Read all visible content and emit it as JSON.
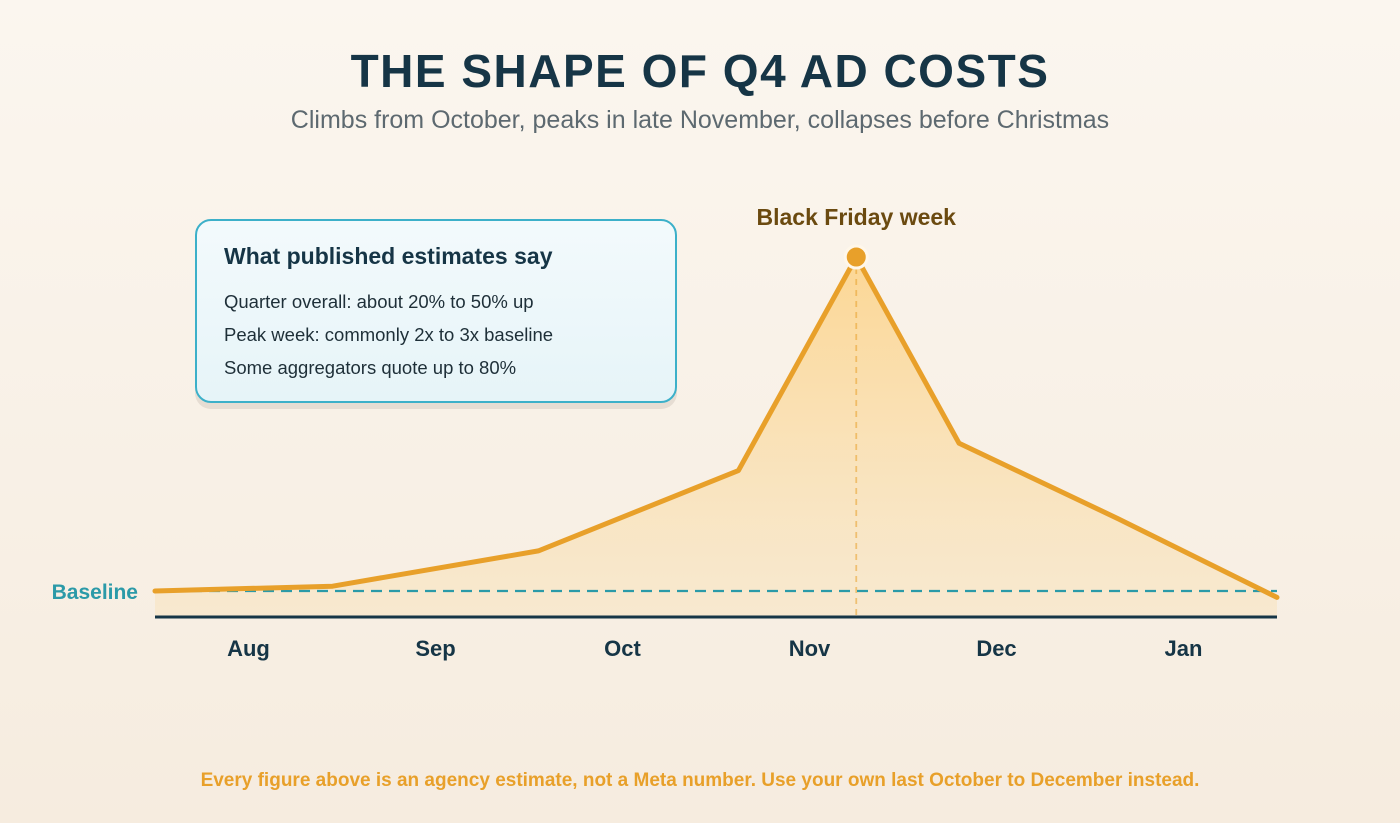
{
  "header": {
    "title": "THE SHAPE OF Q4 AD COSTS",
    "subtitle": "Climbs from October, peaks in late November, collapses before Christmas"
  },
  "callout": {
    "heading": "What published estimates say",
    "lines": [
      "Quarter overall: about 20% to 50% up",
      "Peak week: commonly 2x to 3x baseline",
      "Some aggregators quote up to 80%"
    ]
  },
  "footer": {
    "note": "Every figure above is an agency estimate, not a Meta number. Use your own last October to December instead."
  },
  "colors": {
    "line": "#e8a02a",
    "baseline": "#2b9aa8",
    "axis": "#163546",
    "peak_label": "#6b4a10"
  },
  "chart_data": {
    "type": "area",
    "categories": [
      "Aug",
      "Sep",
      "Oct",
      "Nov",
      "Dec",
      "Jan"
    ],
    "x": [
      -0.5,
      0.45,
      1.55,
      2.62,
      3.25,
      3.8,
      4.65,
      5.5
    ],
    "y": [
      1.0,
      1.03,
      1.25,
      1.75,
      3.08,
      1.92,
      1.45,
      0.96
    ],
    "ylim": [
      0.9,
      3.2
    ],
    "xlim": [
      -0.5,
      5.5
    ],
    "baseline": {
      "value": 1.0,
      "label": "Baseline"
    },
    "peak": {
      "x": 3.25,
      "y": 3.08,
      "label": "Black Friday week"
    },
    "grid": false,
    "legend": "none"
  }
}
